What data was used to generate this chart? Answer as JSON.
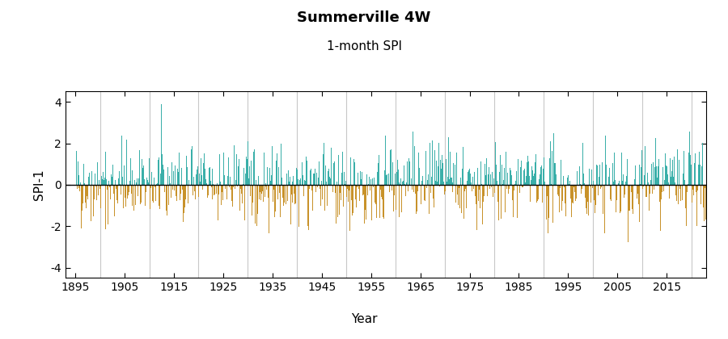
{
  "title": "Summerville 4W",
  "subtitle": "1-month SPI",
  "xlabel": "Year",
  "ylabel": "SPI-1",
  "ylim": [
    -4.5,
    4.5
  ],
  "yticks": [
    -4,
    -2,
    0,
    2,
    4
  ],
  "x_start_year": 1895,
  "x_end_year": 2023,
  "xlim": [
    1893,
    2023
  ],
  "xticks": [
    1895,
    1905,
    1915,
    1925,
    1935,
    1945,
    1955,
    1965,
    1975,
    1985,
    1995,
    2005,
    2015
  ],
  "color_positive": "#3aafa9",
  "color_negative": "#c8922a",
  "vgrid_color": "#c8c8c8",
  "vgrid_years": [
    1900,
    1910,
    1920,
    1930,
    1940,
    1950,
    1960,
    1970,
    1980,
    1990,
    2000,
    2010,
    2020
  ],
  "title_fontsize": 13,
  "subtitle_fontsize": 11,
  "axis_label_fontsize": 11,
  "tick_fontsize": 10,
  "figsize": [
    9.0,
    4.2
  ],
  "dpi": 100,
  "seed": 42
}
